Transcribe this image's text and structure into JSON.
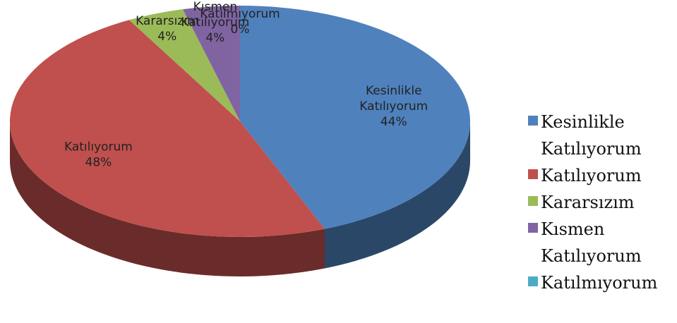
{
  "chart_data": {
    "type": "pie3d",
    "categories": [
      "Kesinlikle Katılıyorum",
      "Katılıyorum",
      "Kararsızım",
      "Kısmen Katılıyorum",
      "Katılmıyorum"
    ],
    "values": [
      44,
      48,
      4,
      4,
      0
    ],
    "value_labels": [
      "44%",
      "48%",
      "4%",
      "4%",
      "0%"
    ],
    "colors": [
      "#4f81bd",
      "#c0504d",
      "#9bbb59",
      "#8064a2",
      "#4bacc6"
    ],
    "legend": "right"
  }
}
